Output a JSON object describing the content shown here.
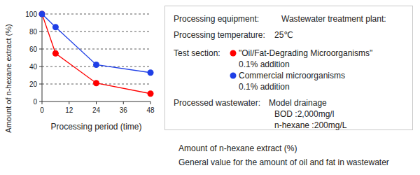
{
  "chart_data": {
    "type": "line",
    "x_label": "Processing period (time)",
    "y_label": "Amount of n-hexane extract (%)",
    "xlim": [
      0,
      48
    ],
    "xticks": [
      0,
      12,
      24,
      36,
      48
    ],
    "ylim": [
      0,
      100
    ],
    "yticks": [
      0,
      20,
      40,
      60,
      80,
      100
    ],
    "grid": true,
    "marker": "circle",
    "conditions": [
      {
        "label": "Processing equipment:",
        "value": "Wastewater treatment plant:"
      },
      {
        "label": "Processing temperature:",
        "value": "25℃"
      }
    ],
    "legend_title": "Test section:",
    "series": [
      {
        "name": "\"Oil/Fat-Degrading Microorganisms\"",
        "detail": "0.1% addition",
        "color": "#ff0000",
        "x": [
          0,
          6,
          24,
          48
        ],
        "values": [
          100,
          55,
          21,
          9
        ]
      },
      {
        "name": "Commercial microorganisms",
        "detail": "0.1% addition",
        "color": "#1f3fe6",
        "x": [
          0,
          6,
          24,
          48
        ],
        "values": [
          100,
          85,
          42,
          33
        ]
      }
    ],
    "wastewater": {
      "label": "Processed wastewater:",
      "lines": [
        "Model drainage",
        "BOD :2,000mg/l",
        "n-hexane :200mg/L"
      ]
    },
    "footnotes": [
      "Amount of n-hexane extract (%)",
      "General value for the amount of oil and fat in wastewater"
    ]
  }
}
